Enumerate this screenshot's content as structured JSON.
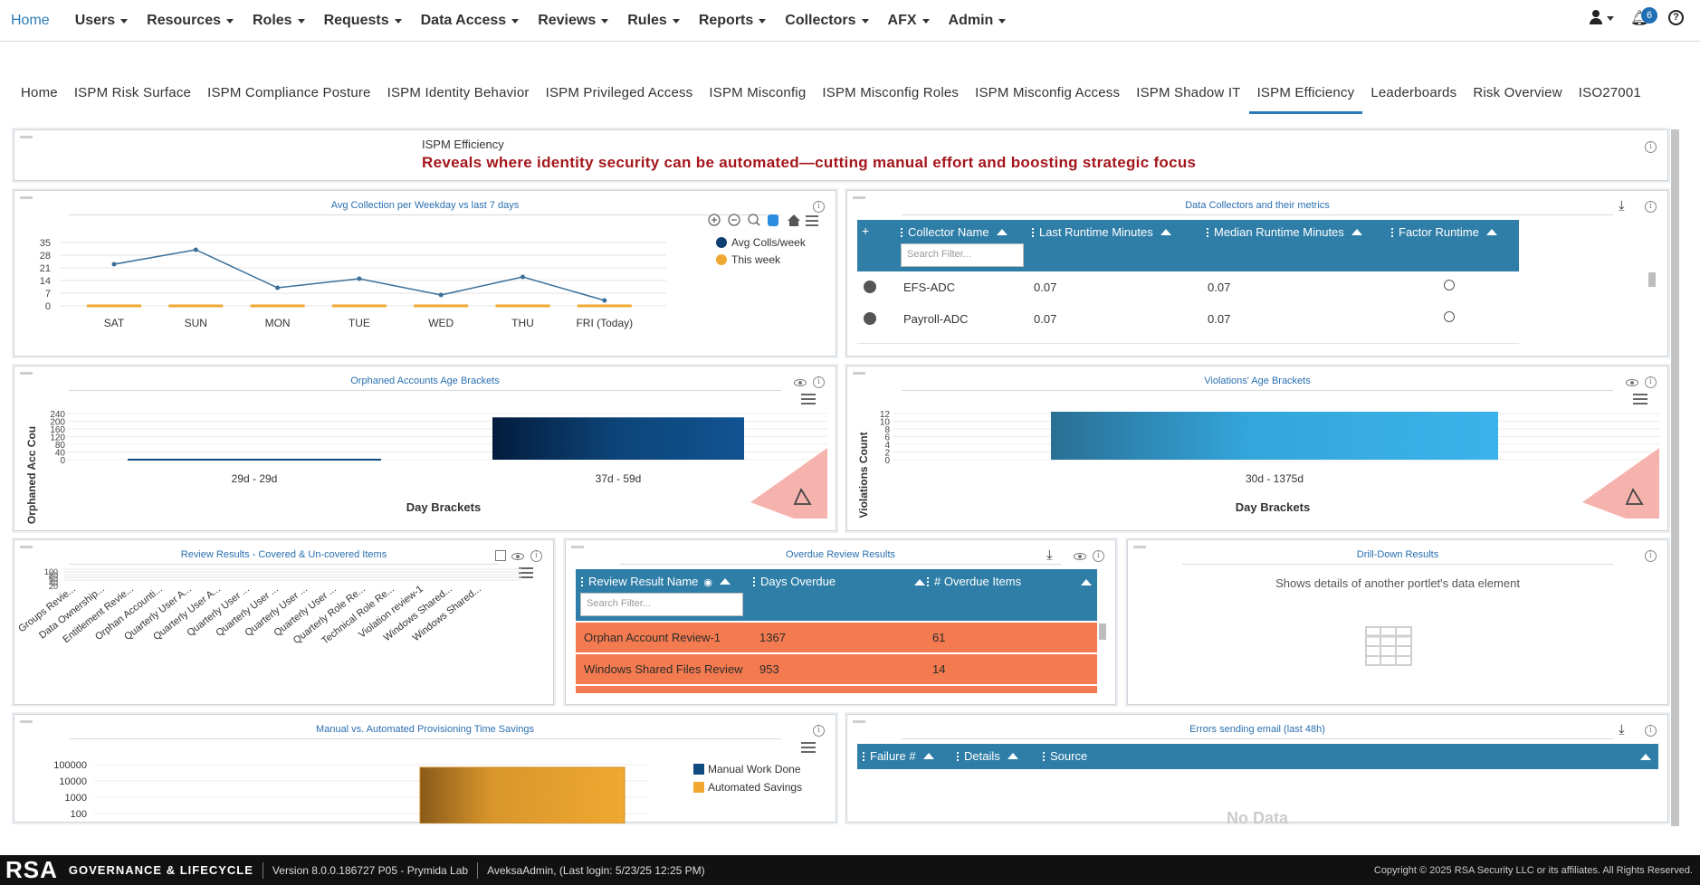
{
  "topnav": {
    "home": "Home",
    "items": [
      "Users",
      "Resources",
      "Roles",
      "Requests",
      "Data Access",
      "Reviews",
      "Rules",
      "Reports",
      "Collectors",
      "AFX",
      "Admin"
    ],
    "notification_count": "6",
    "help": "?"
  },
  "subtabs": {
    "items": [
      "Home",
      "ISPM Risk Surface",
      "ISPM Compliance Posture",
      "ISPM Identity Behavior",
      "ISPM Privileged Access",
      "ISPM Misconfig",
      "ISPM Misconfig Roles",
      "ISPM Misconfig Access",
      "ISPM Shadow IT",
      "ISPM Efficiency",
      "Leaderboards",
      "Risk Overview",
      "ISO27001"
    ],
    "active": "ISPM Efficiency"
  },
  "header_panel": {
    "label": "ISPM Efficiency",
    "description": "Reveals where identity security can be automated—cutting manual effort and boosting strategic focus"
  },
  "avg_collection": {
    "title": "Avg Collection per Weekday vs last 7 days",
    "chart_data": {
      "type": "line",
      "categories": [
        "SAT",
        "SUN",
        "MON",
        "TUE",
        "WED",
        "THU",
        "FRI (Today)"
      ],
      "series": [
        {
          "name": "Avg Colls/week",
          "values": [
            23,
            31,
            10,
            15,
            6,
            16,
            3
          ],
          "color": "#3a6f99"
        },
        {
          "name": "This week",
          "values": [
            0,
            0,
            0,
            0,
            0,
            0,
            0
          ],
          "color": "#f0a830"
        }
      ],
      "yticks": [
        0,
        7,
        14,
        21,
        28,
        35
      ],
      "ylim": [
        0,
        35
      ],
      "legend": "right",
      "grid": true
    }
  },
  "data_collectors": {
    "title": "Data Collectors and their metrics",
    "columns": [
      "Collector Name",
      "Last Runtime Minutes",
      "Median Runtime Minutes",
      "Factor Runtime"
    ],
    "filter_placeholder": "Search Filter...",
    "rows": [
      {
        "name": "EFS-ADC",
        "last": "0.07",
        "median": "0.07"
      },
      {
        "name": "Payroll-ADC",
        "last": "0.07",
        "median": "0.07"
      }
    ]
  },
  "orphaned": {
    "title": "Orphaned Accounts Age Brackets",
    "chart_data": {
      "type": "bar",
      "categories": [
        "29d - 29d",
        "37d - 59d"
      ],
      "values": [
        5,
        220
      ],
      "yticks": [
        0,
        40,
        80,
        120,
        160,
        200,
        240
      ],
      "ylabel": "Orphaned Acc Cou",
      "xlabel": "Day Brackets",
      "color": "#0f4a80"
    }
  },
  "violations": {
    "title": "Violations' Age Brackets",
    "chart_data": {
      "type": "bar",
      "categories": [
        "30d - 1375d"
      ],
      "values": [
        12
      ],
      "yticks": [
        0,
        2,
        4,
        6,
        8,
        10,
        12
      ],
      "ylabel": "Violations Count",
      "xlabel": "Day Brackets",
      "color": "#3aaee0"
    }
  },
  "review_results": {
    "title": "Review Results - Covered & Un-covered Items",
    "categories": [
      "Groups Revie...",
      "Data Ownership...",
      "Entitlement Revie...",
      "Orphan Accounti...",
      "Quarterly User A...",
      "Quarterly User A...",
      "Quarterly User ...",
      "Quarterly User ...",
      "Quarterly User ...",
      "Quarterly User ...",
      "Quarterly Role Re...",
      "Technical Role Re...",
      "Violation review-1",
      "Windows Shared...",
      "Windows Shared..."
    ],
    "yticks": [
      "100",
      "80",
      "60",
      "40",
      "20"
    ]
  },
  "overdue": {
    "title": "Overdue Review Results",
    "columns": [
      "Review Result Name",
      "Days Overdue",
      "# Overdue Items"
    ],
    "filter_placeholder": "Search Filter...",
    "rows": [
      {
        "name": "Orphan Account Review-1",
        "days": "1367",
        "items": "61"
      },
      {
        "name": "Windows Shared Files Review",
        "days": "953",
        "items": "14"
      }
    ]
  },
  "drilldown": {
    "title": "Drill-Down Results",
    "message": "Shows details of another portlet's data element"
  },
  "provisioning": {
    "title": "Manual vs. Automated Provisioning Time Savings",
    "chart_data": {
      "type": "bar",
      "series": [
        {
          "name": "Manual Work Done",
          "color": "#0f4a80"
        },
        {
          "name": "Automated Savings",
          "color": "#f0a830"
        }
      ],
      "yticks": [
        "100000",
        "10000",
        "1000",
        "100"
      ],
      "scale": "log"
    }
  },
  "errors_email": {
    "title": "Errors sending email (last 48h)",
    "columns": [
      "Failure #",
      "Details",
      "Source"
    ],
    "empty": "No Data"
  },
  "footer": {
    "logo": "RSA",
    "product": "GOVERNANCE & LIFECYCLE",
    "version": "Version 8.0.0.186727 P05 - Prymida Lab",
    "user": "AveksaAdmin,  (Last login: 5/23/25 12:25 PM)",
    "copyright": "Copyright © 2025 RSA Security LLC or its affiliates. All Rights Reserved."
  }
}
